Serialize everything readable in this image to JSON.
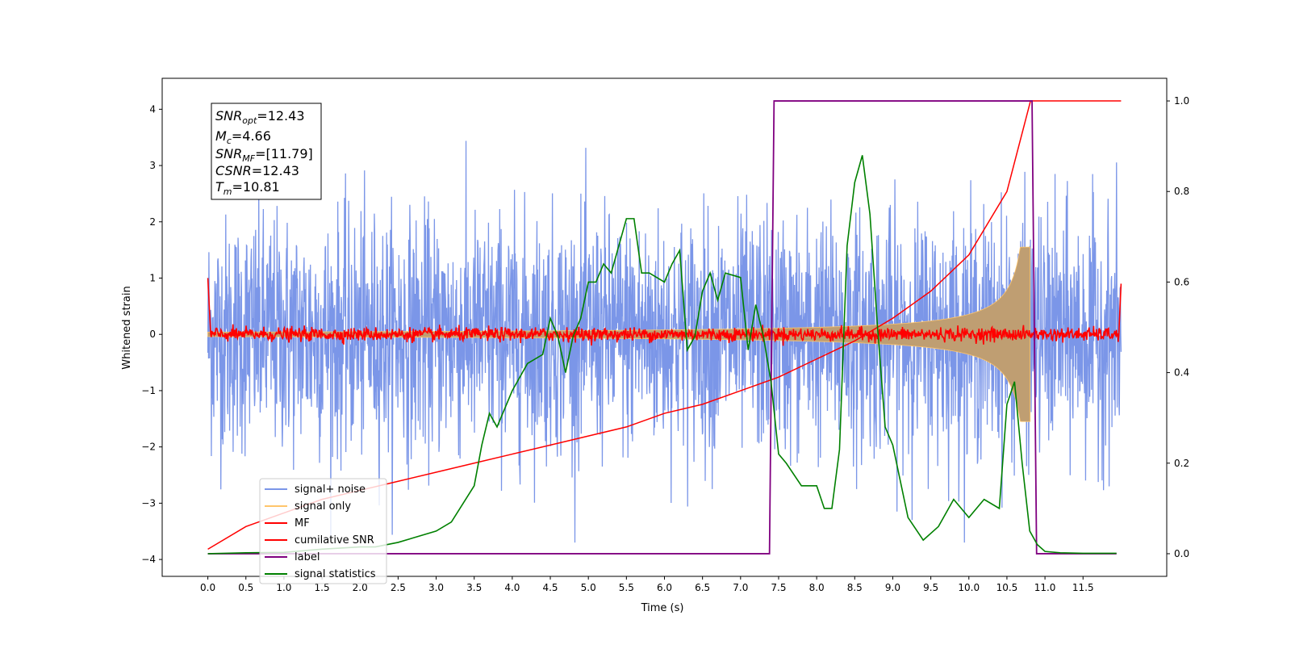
{
  "chart_data": {
    "type": "line",
    "title": "",
    "xlabel": "Time (s)",
    "ylabel": "Whitened strain",
    "xlim": [
      -0.6,
      12.6
    ],
    "ylim": [
      -4.3,
      4.55
    ],
    "y2lim": [
      -0.05,
      1.05
    ],
    "grid": false,
    "legend_position": "lower-left",
    "x_ticks": [
      "0.0",
      "0.5",
      "1.0",
      "1.5",
      "2.0",
      "2.5",
      "3.0",
      "3.5",
      "4.0",
      "4.5",
      "5.0",
      "5.5",
      "6.0",
      "6.5",
      "7.0",
      "7.5",
      "8.0",
      "8.5",
      "9.0",
      "9.5",
      "10.0",
      "10.5",
      "11.0",
      "11.5"
    ],
    "y_ticks": [
      "4",
      "3",
      "2",
      "1",
      "0",
      "−1",
      "−2",
      "−3",
      "−4"
    ],
    "y2_ticks": [
      "1.0",
      "0.8",
      "0.6",
      "0.4",
      "0.2",
      "0.0"
    ],
    "annotation": {
      "snr_opt": {
        "symbol": "SNR",
        "sub": "opt",
        "value": "=12.43"
      },
      "mc": {
        "symbol": "M",
        "sub": "c",
        "value": "=4.66"
      },
      "snr_mf": {
        "symbol": "SNR",
        "sub": "MF",
        "value": "=[11.79]"
      },
      "csnr": {
        "symbol": "CSNR",
        "value": "=12.43"
      },
      "tm": {
        "symbol": "T",
        "sub": "m",
        "value": "=10.81"
      }
    },
    "series": [
      {
        "name": "signal+ noise",
        "color": "#7b96e8",
        "axis": "left",
        "description": "white noise, std ~1, range approx -3.7 to 4.2, t = 0 to 12"
      },
      {
        "name": "signal only",
        "color": "#ffc56b",
        "axis": "left",
        "description": "chirp envelope growing from ~0.05 at t=0 to ~1.5 at t=10.81, then 0"
      },
      {
        "name": "MF",
        "color": "#ff0000",
        "axis": "left",
        "description": "near 0 (~±0.15), spike to 1.0 at t=0 and 0.9 at t=12"
      },
      {
        "name": "cumilative SNR",
        "color": "#ff0000",
        "axis": "right",
        "x": [
          0,
          0.5,
          1,
          1.5,
          2,
          2.5,
          3,
          3.5,
          4,
          4.5,
          5,
          5.5,
          6,
          6.5,
          7,
          7.5,
          8,
          8.5,
          9,
          9.5,
          10,
          10.5,
          10.81,
          12
        ],
        "y": [
          0.01,
          0.06,
          0.09,
          0.12,
          0.14,
          0.16,
          0.18,
          0.2,
          0.22,
          0.24,
          0.26,
          0.28,
          0.31,
          0.33,
          0.36,
          0.39,
          0.43,
          0.47,
          0.52,
          0.58,
          0.66,
          0.8,
          1.0,
          1.0
        ]
      },
      {
        "name": "label",
        "color": "#800080",
        "axis": "right",
        "x": [
          0,
          7.38,
          7.44,
          10.83,
          10.89,
          11.94
        ],
        "y": [
          0,
          0,
          1,
          1,
          0,
          0
        ]
      },
      {
        "name": "signal statistics",
        "color": "#008000",
        "axis": "right",
        "x": [
          0,
          0.5,
          1.0,
          1.5,
          2.0,
          2.2,
          2.5,
          3.0,
          3.2,
          3.5,
          3.6,
          3.7,
          3.8,
          4.0,
          4.2,
          4.4,
          4.5,
          4.6,
          4.7,
          4.8,
          4.9,
          5.0,
          5.1,
          5.2,
          5.3,
          5.4,
          5.5,
          5.6,
          5.7,
          5.8,
          6.0,
          6.1,
          6.2,
          6.3,
          6.4,
          6.5,
          6.6,
          6.7,
          6.8,
          7.0,
          7.1,
          7.2,
          7.3,
          7.4,
          7.5,
          7.6,
          7.8,
          8.0,
          8.1,
          8.2,
          8.3,
          8.4,
          8.5,
          8.6,
          8.7,
          8.8,
          8.9,
          9.0,
          9.2,
          9.4,
          9.6,
          9.8,
          10.0,
          10.2,
          10.4,
          10.5,
          10.6,
          10.7,
          10.8,
          10.9,
          11.0,
          11.2,
          11.5,
          11.94
        ],
        "y": [
          0.0,
          0.002,
          0.003,
          0.01,
          0.015,
          0.015,
          0.025,
          0.05,
          0.07,
          0.15,
          0.24,
          0.31,
          0.28,
          0.36,
          0.42,
          0.44,
          0.52,
          0.48,
          0.4,
          0.48,
          0.52,
          0.6,
          0.6,
          0.64,
          0.62,
          0.68,
          0.74,
          0.74,
          0.62,
          0.62,
          0.6,
          0.64,
          0.67,
          0.45,
          0.48,
          0.58,
          0.62,
          0.56,
          0.62,
          0.61,
          0.45,
          0.55,
          0.48,
          0.38,
          0.22,
          0.2,
          0.15,
          0.15,
          0.1,
          0.1,
          0.23,
          0.68,
          0.82,
          0.88,
          0.75,
          0.5,
          0.28,
          0.24,
          0.08,
          0.03,
          0.06,
          0.12,
          0.08,
          0.12,
          0.1,
          0.33,
          0.38,
          0.2,
          0.05,
          0.02,
          0.005,
          0.002,
          0.001,
          0.001
        ]
      }
    ]
  }
}
